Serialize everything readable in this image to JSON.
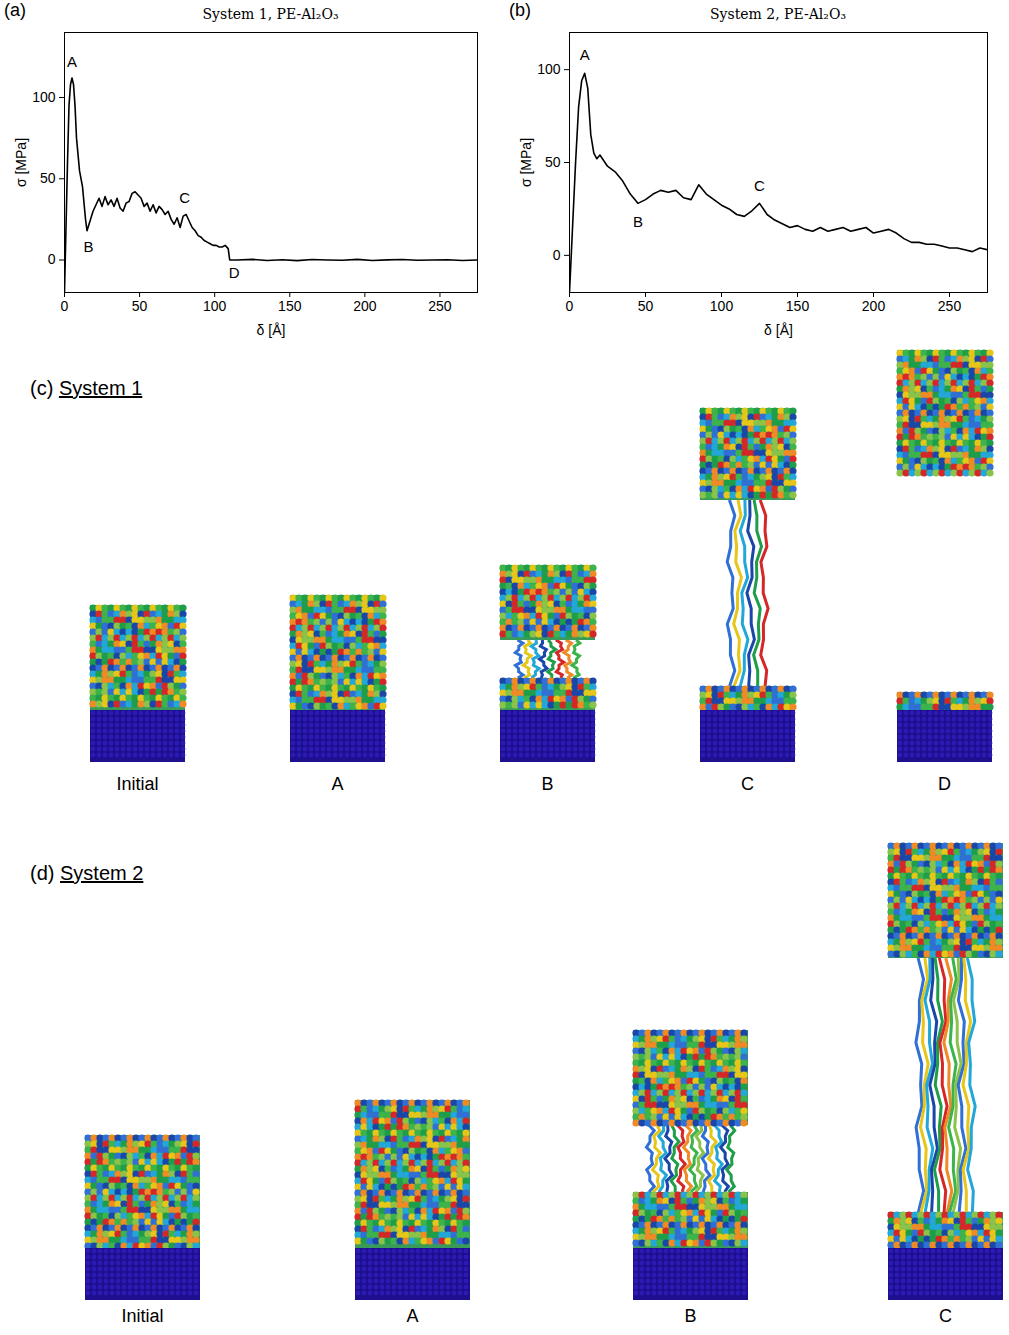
{
  "chart_data": [
    {
      "type": "line",
      "panel": "(a)",
      "title": "System 1, PE-Al₂O₃",
      "x_label": "δ [Å]",
      "y_label": "σ [MPa]",
      "xlim": [
        0,
        275
      ],
      "xticks": [
        0,
        50,
        100,
        150,
        200,
        250
      ],
      "ylim": [
        -20,
        140
      ],
      "yticks": [
        0,
        50,
        100
      ],
      "grid": false,
      "x": [
        0,
        1,
        2,
        3,
        4,
        5,
        6,
        7,
        8,
        10,
        12,
        14,
        15,
        17,
        19,
        21,
        23,
        25,
        27,
        29,
        31,
        33,
        35,
        37,
        39,
        41,
        43,
        45,
        47,
        49,
        51,
        53,
        55,
        57,
        59,
        61,
        63,
        65,
        67,
        69,
        71,
        73,
        75,
        77,
        79,
        81,
        83,
        85,
        87,
        89,
        91,
        93,
        95,
        97,
        99,
        101,
        103,
        105,
        107,
        109,
        110,
        115,
        125,
        135,
        145,
        155,
        165,
        175,
        185,
        195,
        205,
        215,
        225,
        235,
        245,
        255,
        265,
        275
      ],
      "series": [
        {
          "name": "System 1",
          "color": "#000000",
          "values": [
            -20,
            20,
            60,
            95,
            108,
            112,
            108,
            95,
            75,
            55,
            45,
            25,
            18,
            24,
            30,
            34,
            38,
            33,
            39,
            34,
            37,
            33,
            38,
            32,
            30,
            35,
            36,
            41,
            42,
            40,
            38,
            33,
            35,
            30,
            34,
            29,
            33,
            31,
            28,
            30,
            25,
            22,
            26,
            20,
            27,
            28,
            24,
            20,
            18,
            15,
            14,
            12,
            11,
            10,
            9,
            9,
            8,
            8,
            9,
            7,
            0,
            0,
            0.4,
            -0.3,
            0.2,
            -0.4,
            0.3,
            0,
            -0.2,
            0.4,
            -0.3,
            0.1,
            0.3,
            -0.2,
            0,
            0.2,
            -0.3,
            0
          ]
        }
      ],
      "annotations": [
        {
          "x": 5,
          "y": 122,
          "text": "A"
        },
        {
          "x": 16,
          "y": 8,
          "text": "B"
        },
        {
          "x": 80,
          "y": 38,
          "text": "C"
        },
        {
          "x": 113,
          "y": -8,
          "text": "D"
        }
      ]
    },
    {
      "type": "line",
      "panel": "(b)",
      "title": "System 2, PE-Al₂O₃",
      "x_label": "δ [Å]",
      "y_label": "σ [MPa]",
      "xlim": [
        0,
        275
      ],
      "xticks": [
        0,
        50,
        100,
        150,
        200,
        250
      ],
      "ylim": [
        -20,
        120
      ],
      "yticks": [
        0,
        50,
        100
      ],
      "grid": false,
      "x": [
        0,
        2,
        4,
        6,
        8,
        10,
        12,
        14,
        16,
        18,
        20,
        25,
        30,
        35,
        40,
        45,
        50,
        55,
        60,
        65,
        70,
        75,
        80,
        85,
        90,
        95,
        100,
        105,
        110,
        115,
        120,
        125,
        130,
        135,
        140,
        145,
        150,
        155,
        160,
        165,
        170,
        175,
        180,
        185,
        190,
        195,
        200,
        205,
        210,
        215,
        220,
        225,
        230,
        235,
        240,
        245,
        250,
        255,
        260,
        265,
        270,
        275
      ],
      "series": [
        {
          "name": "System 2",
          "color": "#000000",
          "values": [
            -20,
            15,
            50,
            80,
            94,
            98,
            90,
            65,
            55,
            52,
            54,
            48,
            45,
            40,
            33,
            28,
            30,
            33,
            35,
            34,
            35,
            31,
            30,
            38,
            33,
            30,
            27,
            25,
            22,
            21,
            24,
            28,
            22,
            19,
            17,
            15,
            16,
            14,
            13,
            15,
            13,
            14,
            15,
            13,
            14,
            15,
            12,
            13,
            14,
            12,
            9,
            7,
            7,
            6,
            6,
            5,
            4,
            4,
            3,
            2,
            4,
            3
          ]
        }
      ],
      "annotations": [
        {
          "x": 10,
          "y": 108,
          "text": "A"
        },
        {
          "x": 45,
          "y": 18,
          "text": "B"
        },
        {
          "x": 125,
          "y": 37,
          "text": "C"
        }
      ]
    }
  ],
  "snapshots": [
    {
      "panel": "(c)",
      "title": "System 1",
      "frames": [
        "Initial",
        "A",
        "B",
        "C",
        "D"
      ]
    },
    {
      "panel": "(d)",
      "title": "System 2",
      "frames": [
        "Initial",
        "A",
        "B",
        "C"
      ]
    }
  ]
}
